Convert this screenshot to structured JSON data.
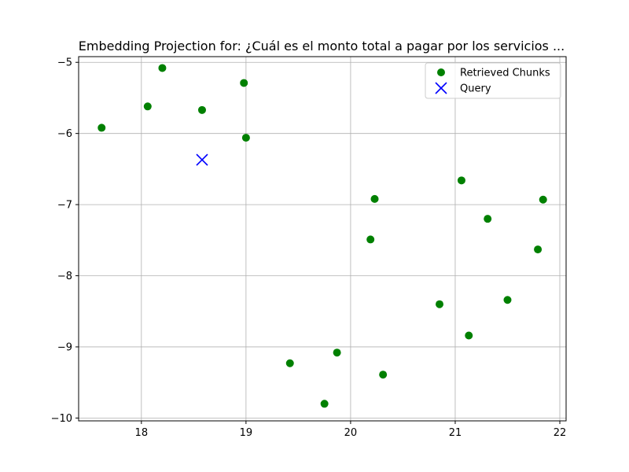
{
  "chart_data": {
    "type": "scatter",
    "title": "Embedding Projection for: ¿Cuál es el monto total a pagar por los servicios ...",
    "xlabel": "",
    "ylabel": "",
    "xlim": [
      17.4,
      22.06
    ],
    "ylim": [
      -10.04,
      -4.92
    ],
    "x_ticks": [
      18,
      19,
      20,
      21,
      22
    ],
    "x_tick_labels": [
      "18",
      "19",
      "20",
      "21",
      "22"
    ],
    "y_ticks": [
      -5,
      -6,
      -7,
      -8,
      -9,
      -10
    ],
    "y_tick_labels": [
      "−5",
      "−6",
      "−7",
      "−8",
      "−9",
      "−10"
    ],
    "grid": true,
    "legend_position": "top-right",
    "series": [
      {
        "name": "Retrieved Chunks",
        "marker": "circle",
        "color": "#008000",
        "points": [
          {
            "x": 17.62,
            "y": -5.92
          },
          {
            "x": 18.06,
            "y": -5.62
          },
          {
            "x": 18.2,
            "y": -5.08
          },
          {
            "x": 18.58,
            "y": -5.67
          },
          {
            "x": 18.98,
            "y": -5.29
          },
          {
            "x": 19.0,
            "y": -6.06
          },
          {
            "x": 20.23,
            "y": -6.92
          },
          {
            "x": 20.19,
            "y": -7.49
          },
          {
            "x": 21.06,
            "y": -6.66
          },
          {
            "x": 21.84,
            "y": -6.93
          },
          {
            "x": 21.31,
            "y": -7.2
          },
          {
            "x": 21.79,
            "y": -7.63
          },
          {
            "x": 21.5,
            "y": -8.34
          },
          {
            "x": 20.85,
            "y": -8.4
          },
          {
            "x": 21.13,
            "y": -8.84
          },
          {
            "x": 19.42,
            "y": -9.23
          },
          {
            "x": 19.87,
            "y": -9.08
          },
          {
            "x": 20.31,
            "y": -9.39
          },
          {
            "x": 19.75,
            "y": -9.8
          }
        ]
      },
      {
        "name": "Query",
        "marker": "x",
        "color": "#0000ff",
        "points": [
          {
            "x": 18.58,
            "y": -6.37
          }
        ]
      }
    ]
  }
}
